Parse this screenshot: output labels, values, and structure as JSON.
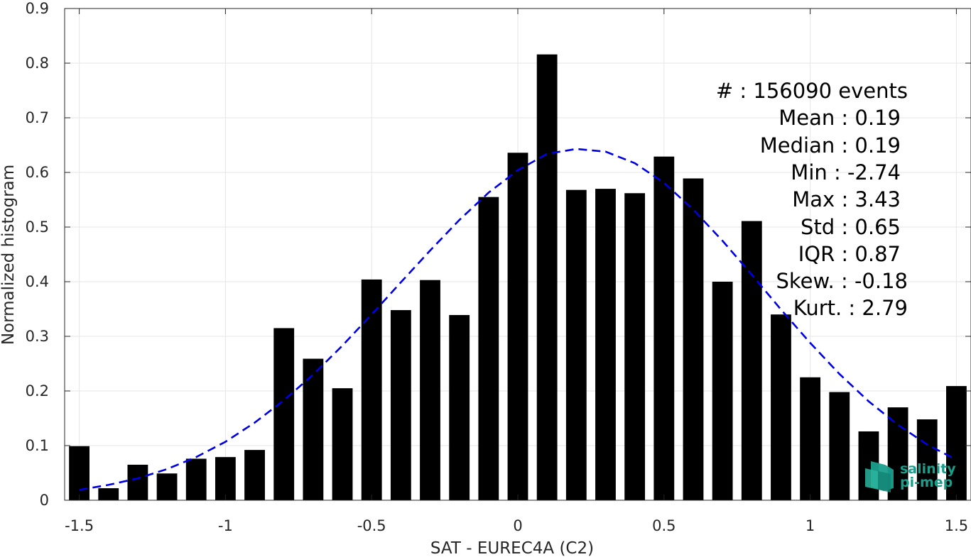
{
  "chart_data": {
    "type": "bar",
    "xlabel": "SAT - EUREC4A (C2)",
    "ylabel": "Normalized histogram",
    "xlim": [
      -1.55,
      1.55
    ],
    "ylim": [
      0,
      0.9
    ],
    "xticks": [
      -1.5,
      -1,
      -0.5,
      0,
      0.5,
      1,
      1.5
    ],
    "xtick_labels": [
      "-1.5",
      "-1",
      "-0.5",
      "0",
      "0.5",
      "1",
      "1.5"
    ],
    "yticks": [
      0,
      0.1,
      0.2,
      0.3,
      0.4,
      0.5,
      0.6,
      0.7,
      0.8,
      0.9
    ],
    "ytick_labels": [
      "0",
      "0.1",
      "0.2",
      "0.3",
      "0.4",
      "0.5",
      "0.6",
      "0.7",
      "0.8",
      "0.9"
    ],
    "grid": true,
    "bar_width": 0.07,
    "bar_color": "#000000",
    "bins": [
      -1.5,
      -1.4,
      -1.3,
      -1.2,
      -1.1,
      -1.0,
      -0.9,
      -0.8,
      -0.7,
      -0.6,
      -0.5,
      -0.4,
      -0.3,
      -0.2,
      -0.1,
      0.0,
      0.1,
      0.2,
      0.3,
      0.4,
      0.5,
      0.6,
      0.7,
      0.8,
      0.9,
      1.0,
      1.1,
      1.2,
      1.3,
      1.4,
      1.5
    ],
    "values": [
      0.099,
      0.022,
      0.065,
      0.049,
      0.076,
      0.079,
      0.092,
      0.315,
      0.259,
      0.205,
      0.404,
      0.348,
      0.403,
      0.339,
      0.555,
      0.636,
      0.816,
      0.568,
      0.57,
      0.562,
      0.629,
      0.589,
      0.4,
      0.511,
      0.34,
      0.225,
      0.198,
      0.126,
      0.17,
      0.148,
      0.209
    ],
    "fit_curve": {
      "style": "dashed",
      "color": "#0000e6",
      "x": [
        -1.5,
        -1.4,
        -1.3,
        -1.2,
        -1.1,
        -1.0,
        -0.9,
        -0.8,
        -0.7,
        -0.6,
        -0.5,
        -0.4,
        -0.3,
        -0.2,
        -0.1,
        0.0,
        0.1,
        0.2,
        0.3,
        0.4,
        0.5,
        0.6,
        0.7,
        0.8,
        0.9,
        1.0,
        1.1,
        1.2,
        1.3,
        1.4,
        1.5
      ],
      "y": [
        0.019,
        0.028,
        0.04,
        0.057,
        0.079,
        0.107,
        0.142,
        0.183,
        0.23,
        0.283,
        0.34,
        0.399,
        0.457,
        0.513,
        0.563,
        0.604,
        0.634,
        0.643,
        0.638,
        0.617,
        0.581,
        0.532,
        0.475,
        0.413,
        0.349,
        0.288,
        0.231,
        0.181,
        0.138,
        0.102,
        0.074
      ]
    },
    "stats": {
      "count": "#  : 156090 events",
      "mean": "Mean : 0.19",
      "median": "Median : 0.19",
      "min": "Min : -2.74",
      "max": "Max : 3.43",
      "std": "Std : 0.65",
      "iqr": "IQR : 0.87",
      "skew": "Skew. : -0.18",
      "kurt": "Kurt. : 2.79"
    }
  },
  "logo": {
    "line1": "salinity",
    "line2": "pi-mep",
    "color": "#1a9e8c"
  }
}
